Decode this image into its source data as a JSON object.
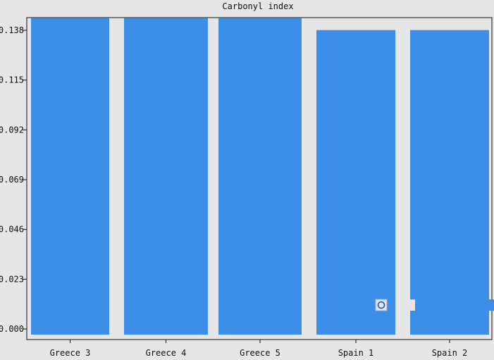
{
  "chart_data": {
    "type": "bar",
    "title": "Carbonyl index",
    "xlabel": "",
    "ylabel": "",
    "categories": [
      "Greece 3",
      "Greece 4",
      "Greece 5",
      "Spain 1",
      "Spain 2"
    ],
    "values": [
      0.141,
      0.141,
      0.141,
      0.1355,
      0.1355
    ],
    "yticks": [
      "0.000",
      "0.023",
      "0.046",
      "0.069",
      "0.092",
      "0.115",
      "0.138"
    ],
    "ylim": [
      0,
      0.144
    ],
    "grid": false,
    "colors": {
      "bar": "#3d8ee8",
      "background": "#e6e6e6",
      "axes": "#111111"
    }
  }
}
